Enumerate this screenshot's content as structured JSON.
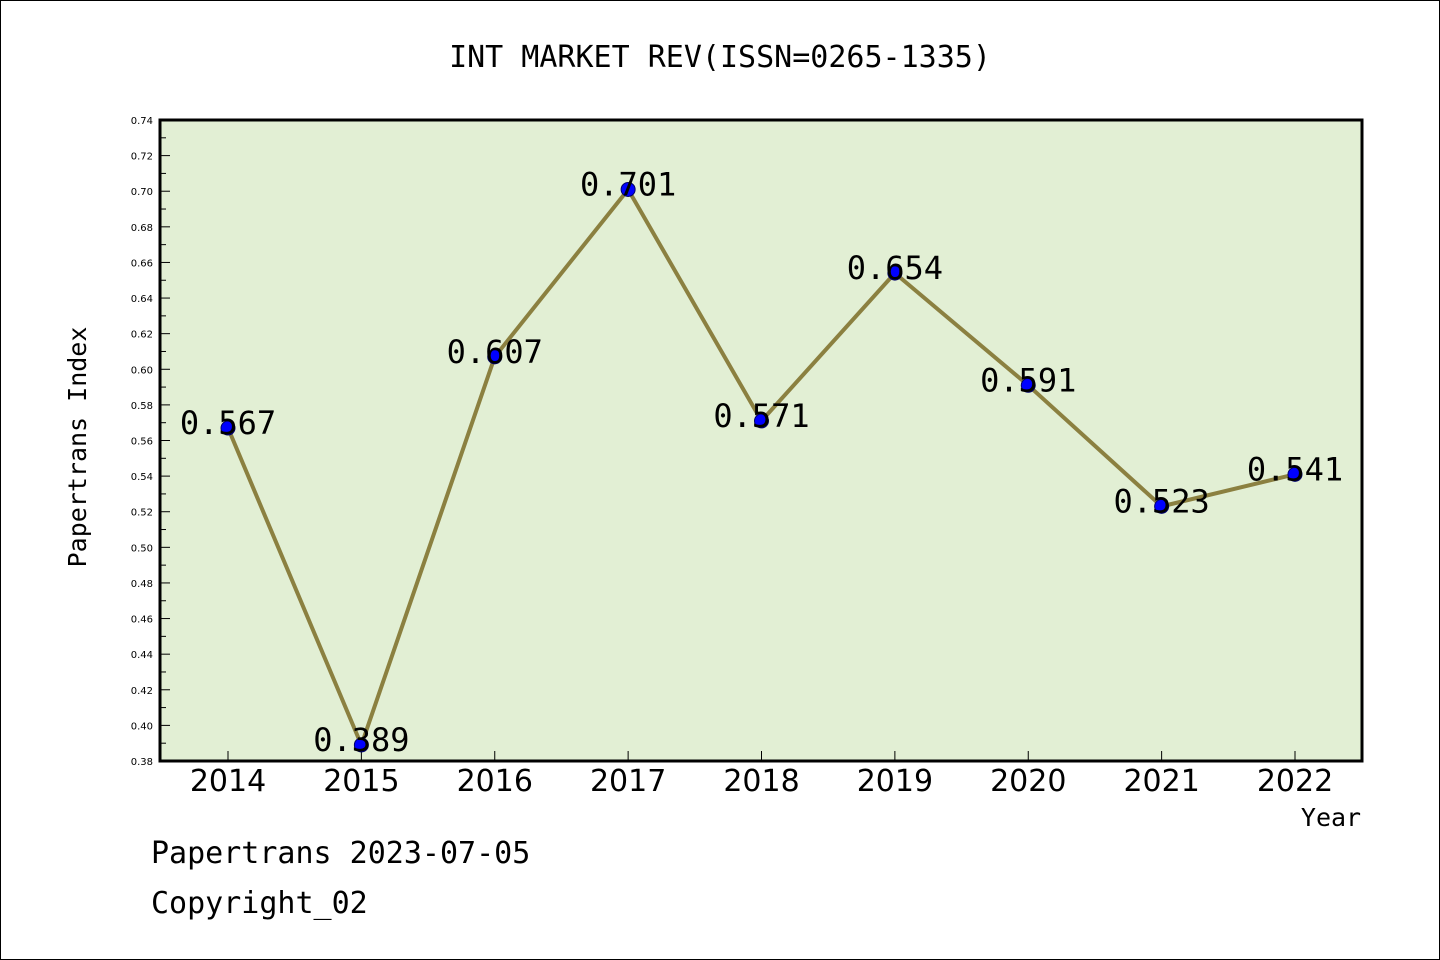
{
  "chart_data": {
    "type": "line",
    "title": "INT MARKET REV(ISSN=0265-1335)",
    "xlabel": "Year",
    "ylabel": "Papertrans Index",
    "categories": [
      "2014",
      "2015",
      "2016",
      "2017",
      "2018",
      "2019",
      "2020",
      "2021",
      "2022"
    ],
    "values": [
      0.567,
      0.389,
      0.607,
      0.701,
      0.571,
      0.654,
      0.591,
      0.523,
      0.541
    ],
    "data_labels": [
      "0.567",
      "0.389",
      "0.607",
      "0.701",
      "0.571",
      "0.654",
      "0.591",
      "0.523",
      "0.541"
    ],
    "ylim": [
      0.38,
      0.74
    ],
    "yticks": [
      "0.38",
      "0.40",
      "0.42",
      "0.44",
      "0.46",
      "0.48",
      "0.50",
      "0.52",
      "0.54",
      "0.56",
      "0.58",
      "0.60",
      "0.62",
      "0.64",
      "0.66",
      "0.68",
      "0.70",
      "0.72",
      "0.74"
    ],
    "grid": false,
    "colors": {
      "plot_bg": "#e2efd4",
      "line": "#8b8040",
      "marker": "#0000ff"
    }
  },
  "footer": {
    "line1": "Papertrans 2023-07-05",
    "line2": "Copyright_02"
  }
}
